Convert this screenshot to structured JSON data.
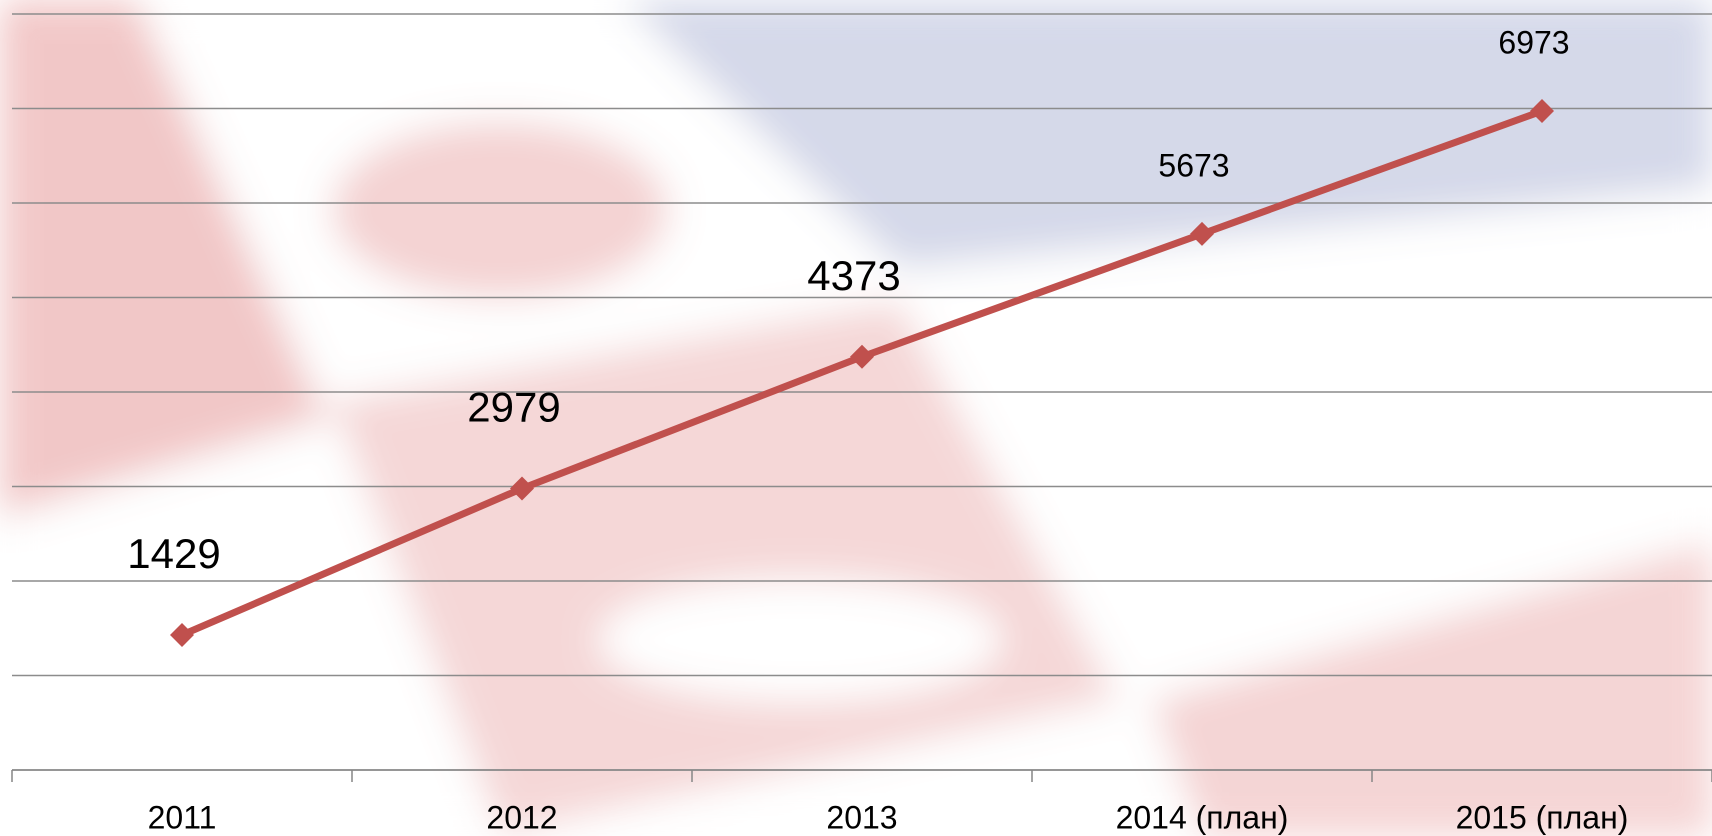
{
  "chart_data": {
    "type": "line",
    "categories": [
      "2011",
      "2012",
      "2013",
      "2014 (план)",
      "2015 (план)"
    ],
    "series": [
      {
        "color": "#c0504d",
        "values": [
          1429,
          2979,
          4373,
          5673,
          6973
        ]
      }
    ],
    "ylim": [
      0,
      8000
    ],
    "yticks": [
      0,
      1000,
      2000,
      3000,
      4000,
      5000,
      6000,
      7000,
      8000
    ],
    "grid": true,
    "show_ytick_labels": false
  }
}
